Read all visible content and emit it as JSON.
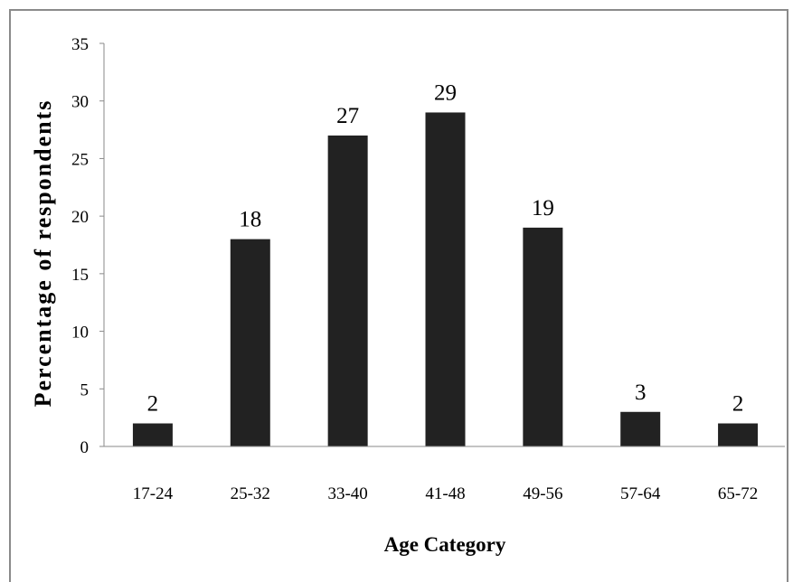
{
  "chart_data": {
    "type": "bar",
    "categories": [
      "17-24",
      "25-32",
      "33-40",
      "41-48",
      "49-56",
      "57-64",
      "65-72"
    ],
    "values": [
      2,
      18,
      27,
      29,
      19,
      3,
      2
    ],
    "data_labels": [
      "2",
      "18",
      "27",
      "29",
      "19",
      "3",
      "2"
    ],
    "title": "",
    "xlabel": "Age Category",
    "ylabel": "Percentage of respondents",
    "ylim": [
      0,
      35
    ],
    "yticks": [
      "0",
      "5",
      "10",
      "15",
      "20",
      "25",
      "30",
      "35"
    ],
    "grid": false,
    "legend": "none",
    "bar_color": "#222222"
  }
}
